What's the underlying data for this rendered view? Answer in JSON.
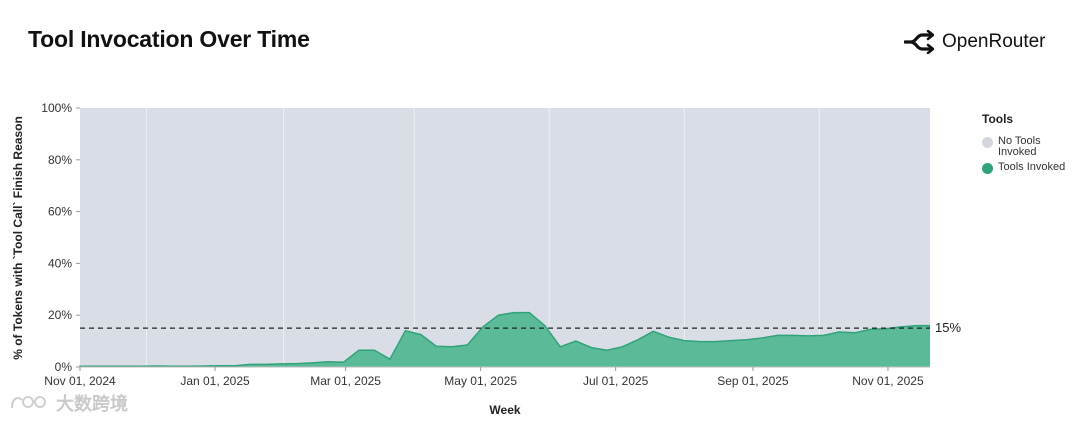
{
  "header": {
    "title": "Tool Invocation Over Time",
    "brand_name": "OpenRouter"
  },
  "colors": {
    "background_area": "#d9dde6",
    "tools_invoked": "#2fa37a",
    "tools_invoked_fill": "#5bbb99",
    "reference_line": "#222222"
  },
  "legend": {
    "title": "Tools",
    "items": [
      {
        "label": "No Tools Invoked",
        "color": "#d9dde6"
      },
      {
        "label": "Tools Invoked",
        "color": "#2fa37a"
      }
    ]
  },
  "chart_data": {
    "type": "area",
    "title": "Tool Invocation Over Time",
    "xlabel": "Week",
    "ylabel": "% of Tokens with `Tool Call` Finish Reason",
    "ylim": [
      0,
      100
    ],
    "yticks": [
      "0%",
      "20%",
      "40%",
      "60%",
      "80%",
      "100%"
    ],
    "xticks": [
      "Nov 01, 2024",
      "Jan 01, 2025",
      "Mar 01, 2025",
      "May 01, 2025",
      "Jul 01, 2025",
      "Sep 01, 2025",
      "Nov 01, 2025"
    ],
    "reference_line": {
      "value": 15,
      "label": "15%"
    },
    "legend_position": "right",
    "series": [
      {
        "name": "Tools Invoked",
        "x": [
          "2024-11-01",
          "2024-11-08",
          "2024-11-15",
          "2024-11-22",
          "2024-11-29",
          "2024-12-06",
          "2024-12-13",
          "2024-12-20",
          "2024-12-27",
          "2025-01-03",
          "2025-01-10",
          "2025-01-17",
          "2025-01-24",
          "2025-01-31",
          "2025-02-07",
          "2025-02-14",
          "2025-02-21",
          "2025-02-28",
          "2025-03-07",
          "2025-03-14",
          "2025-03-21",
          "2025-03-28",
          "2025-04-04",
          "2025-04-11",
          "2025-04-18",
          "2025-04-25",
          "2025-05-02",
          "2025-05-09",
          "2025-05-16",
          "2025-05-23",
          "2025-05-30",
          "2025-06-06",
          "2025-06-13",
          "2025-06-20",
          "2025-06-27",
          "2025-07-04",
          "2025-07-11",
          "2025-07-18",
          "2025-07-25",
          "2025-08-01",
          "2025-08-08",
          "2025-08-15",
          "2025-08-22",
          "2025-08-29",
          "2025-09-05",
          "2025-09-12",
          "2025-09-19",
          "2025-09-26",
          "2025-10-03",
          "2025-10-10",
          "2025-10-17",
          "2025-10-24",
          "2025-10-31",
          "2025-11-07",
          "2025-11-14"
        ],
        "values": [
          0.3,
          0.3,
          0.3,
          0.3,
          0.3,
          0.4,
          0.3,
          0.3,
          0.4,
          0.5,
          0.5,
          1,
          1,
          1.2,
          1.3,
          1.6,
          2,
          1.8,
          6.5,
          6.5,
          3,
          14,
          12.5,
          8,
          7.8,
          8.5,
          15.5,
          20,
          21,
          21,
          16,
          7.8,
          10,
          7.5,
          6.5,
          7.8,
          10.5,
          13.8,
          11.5,
          10.2,
          9.8,
          9.8,
          10.2,
          10.5,
          11.2,
          12.2,
          12.2,
          12,
          12.2,
          13.5,
          13.2,
          14.5,
          14.8,
          15.5,
          16
        ]
      }
    ]
  },
  "watermark": {
    "text": "大数跨境"
  }
}
